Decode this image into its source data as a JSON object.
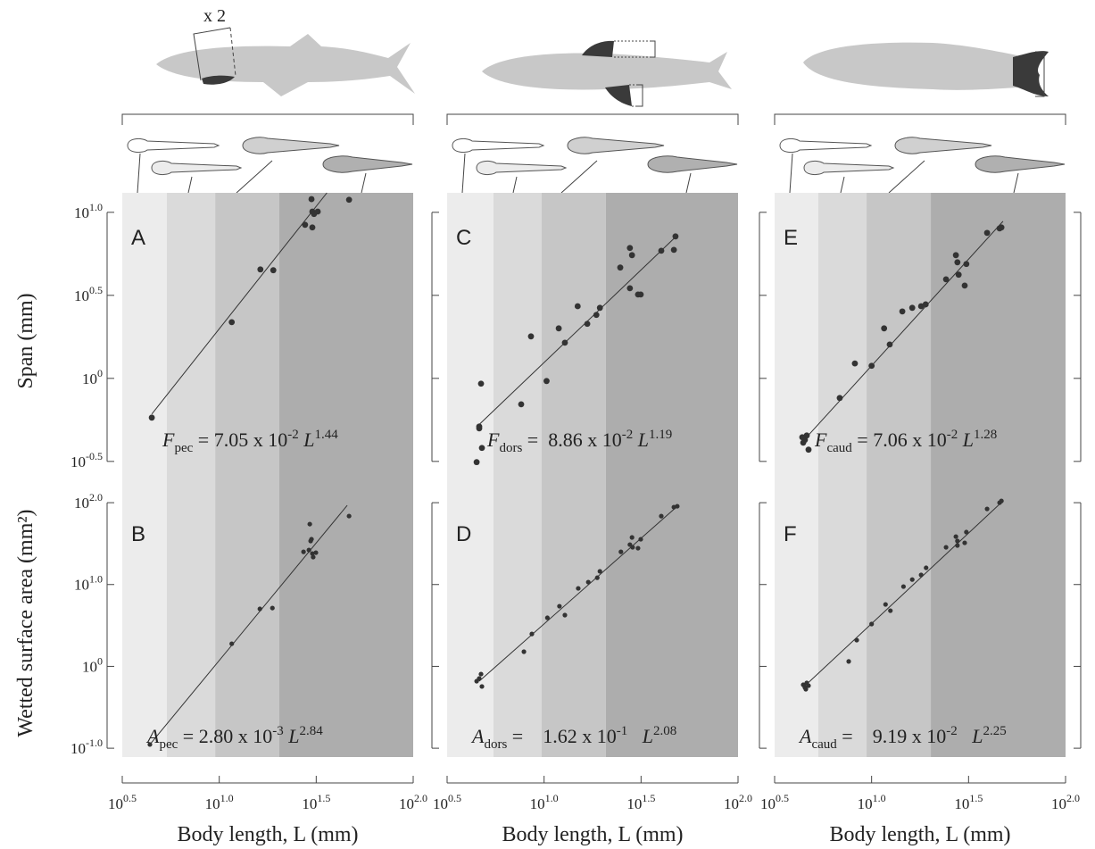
{
  "chart_data": [
    {
      "type": "scatter",
      "panel_label": "A",
      "ylabel": "Span (mm)",
      "annotation": "x 2",
      "xlim": [
        3.162,
        100
      ],
      "ylim": [
        0.215,
        13.1
      ],
      "log_x": true,
      "log_y": true,
      "yticks": [
        {
          "value": 10,
          "label": "10",
          "exp": "1.0"
        },
        {
          "value": 3.162,
          "label": "10",
          "exp": "0.5"
        },
        {
          "value": 1,
          "label": "10",
          "exp": "0"
        },
        {
          "value": 0.3162,
          "label": "10",
          "exp": "-0.5"
        }
      ],
      "shaded_regions": [
        5.37,
        9.53,
        20.4
      ],
      "shade_colors": [
        "#ececec",
        "#dadada",
        "#c6c6c6",
        "#adadad"
      ],
      "color": "#333333",
      "x": [
        4.49,
        11.6,
        16.3,
        19.0,
        27.7,
        29.9,
        30.2,
        30.2,
        30.8,
        32.2,
        46.7
      ],
      "values": [
        0.58,
        2.18,
        4.53,
        4.48,
        8.41,
        12.0,
        10.1,
        8.11,
        9.76,
        10.1,
        11.9
      ],
      "fit": {
        "x": [
          4.49,
          35.9
        ],
        "y": [
          0.61,
          13.1
        ]
      },
      "equation": {
        "symbol": "F",
        "subscript": "pec",
        "text": " = 7.05 x 10",
        "power": "-2",
        "variable": " L",
        "exponent": "1.44"
      }
    },
    {
      "type": "scatter",
      "panel_label": "B",
      "ylabel": "Wetted surface area (mm²)",
      "xlabel": "Body length, L (mm)",
      "xlim": [
        3.162,
        100
      ],
      "ylim": [
        0.078,
        146
      ],
      "log_x": true,
      "log_y": true,
      "xticks": [
        {
          "value": 3.162,
          "label": "10",
          "exp": "0.5"
        },
        {
          "value": 10,
          "label": "10",
          "exp": "1.0"
        },
        {
          "value": 31.62,
          "label": "10",
          "exp": "1.5"
        },
        {
          "value": 100,
          "label": "10",
          "exp": "2.0"
        }
      ],
      "yticks": [
        {
          "value": 100,
          "label": "10",
          "exp": "2.0"
        },
        {
          "value": 10,
          "label": "10",
          "exp": "1.0"
        },
        {
          "value": 1,
          "label": "10",
          "exp": "0"
        },
        {
          "value": 0.1,
          "label": "10",
          "exp": "-1.0"
        }
      ],
      "shaded_regions": [
        5.37,
        9.53,
        20.4
      ],
      "shade_colors": [
        "#ececec",
        "#dadada",
        "#c6c6c6",
        "#adadad"
      ],
      "color": "#333333",
      "x": [
        4.39,
        11.6,
        16.2,
        18.8,
        27.2,
        29.3,
        29.6,
        29.9,
        30.2,
        30.5,
        31.5,
        29.0,
        46.7
      ],
      "values": [
        0.111,
        1.89,
        5.04,
        5.16,
        25.1,
        54.7,
        34.0,
        35.8,
        23.9,
        21.6,
        24.5,
        26.4,
        68.6
      ],
      "fit": {
        "x": [
          4.39,
          45.7
        ],
        "y": [
          0.111,
          92.7
        ]
      },
      "equation": {
        "symbol": "A",
        "subscript": "pec",
        "text": " = 2.80 x 10",
        "power": "-3",
        "variable": " L",
        "exponent": "2.84"
      }
    },
    {
      "type": "scatter",
      "panel_label": "C",
      "xlim": [
        3.162,
        100
      ],
      "ylim": [
        0.215,
        13.1
      ],
      "log_x": true,
      "log_y": true,
      "yticks": [
        10,
        3.162,
        1,
        0.3162
      ],
      "shaded_regions": [
        5.48,
        9.72,
        20.8
      ],
      "shade_colors": [
        "#ececec",
        "#dadada",
        "#c6c6c6",
        "#adadad"
      ],
      "color": "#333333",
      "x": [
        4.63,
        4.63,
        4.73,
        4.78,
        4.49,
        7.62,
        8.56,
        10.3,
        11.9,
        12.8,
        14.9,
        16.7,
        18.6,
        19.4,
        24.7,
        27.7,
        28.4,
        27.7,
        30.5,
        31.5,
        40.2,
        46.7,
        47.6
      ],
      "values": [
        0.513,
        0.5,
        0.929,
        0.381,
        0.313,
        0.698,
        1.79,
        0.964,
        2.0,
        1.64,
        2.72,
        2.13,
        2.41,
        2.66,
        4.65,
        6.1,
        5.52,
        3.49,
        3.2,
        3.2,
        5.87,
        5.94,
        7.16
      ],
      "fit": {
        "x": [
          4.49,
          47.6
        ],
        "y": [
          0.51,
          7.1
        ]
      },
      "equation": {
        "symbol": "F",
        "subscript": "dors",
        "text": " =  8.86 x 10",
        "power": "-2",
        "variable": " L",
        "exponent": "1.19"
      }
    },
    {
      "type": "scatter",
      "panel_label": "D",
      "xlabel": "Body length, L (mm)",
      "xlim": [
        3.162,
        100
      ],
      "ylim": [
        0.078,
        146
      ],
      "log_x": true,
      "log_y": true,
      "xticks": [
        {
          "value": 3.162,
          "label": "10",
          "exp": "0.5"
        },
        {
          "value": 10,
          "label": "10",
          "exp": "1.0"
        },
        {
          "value": 31.62,
          "label": "10",
          "exp": "1.5"
        },
        {
          "value": 100,
          "label": "10",
          "exp": "2.0"
        }
      ],
      "yticks": [
        100,
        10,
        1,
        0.1
      ],
      "shaded_regions": [
        5.48,
        9.72,
        20.8
      ],
      "shade_colors": [
        "#ececec",
        "#dadada",
        "#c6c6c6",
        "#adadad"
      ],
      "color": "#333333",
      "x": [
        4.63,
        4.73,
        4.78,
        4.49,
        7.87,
        8.65,
        10.4,
        12.0,
        12.8,
        15.0,
        16.9,
        18.8,
        19.4,
        24.9,
        27.7,
        28.4,
        28.6,
        30.5,
        31.5,
        40.2,
        46.7,
        48.6
      ],
      "values": [
        0.711,
        0.805,
        0.568,
        0.659,
        1.51,
        2.49,
        3.92,
        5.43,
        4.23,
        8.97,
        10.7,
        12.1,
        14.5,
        25.1,
        30.7,
        37.6,
        28.5,
        27.8,
        35.7,
        68.5,
        88.2,
        90.4
      ],
      "fit": {
        "x": [
          4.63,
          49.2
        ],
        "y": [
          0.659,
          92.7
        ]
      },
      "equation": {
        "symbol": "A",
        "subscript": "dors",
        "text": " =    1.62 x 10",
        "power": "-1",
        "variable": "   L",
        "exponent": "2.08"
      }
    },
    {
      "type": "scatter",
      "panel_label": "E",
      "xlim": [
        3.162,
        100
      ],
      "ylim": [
        0.215,
        13.1
      ],
      "log_x": true,
      "log_y": true,
      "yticks": [
        10,
        3.162,
        1,
        0.3162
      ],
      "shaded_regions": [
        5.31,
        9.42,
        20.2
      ],
      "shade_colors": [
        "#ececec",
        "#dadada",
        "#c6c6c6",
        "#adadad"
      ],
      "color": "#333333",
      "x": [
        4.44,
        4.53,
        4.63,
        4.73,
        4.39,
        6.85,
        8.2,
        10.0,
        11.6,
        12.4,
        14.4,
        16.2,
        18.0,
        19.0,
        24.2,
        27.2,
        27.7,
        28.1,
        30.2,
        30.8,
        39.4,
        45.7,
        46.7
      ],
      "values": [
        0.41,
        0.426,
        0.453,
        0.372,
        0.442,
        0.762,
        1.23,
        1.19,
        2.0,
        1.6,
        2.53,
        2.66,
        2.72,
        2.79,
        3.95,
        5.52,
        5.0,
        4.21,
        3.62,
        4.88,
        7.52,
        8.0,
        8.11
      ],
      "fit": {
        "x": [
          4.39,
          47.6
        ],
        "y": [
          0.414,
          8.83
        ]
      },
      "equation": {
        "symbol": "F",
        "subscript": "caud",
        "text": " = 7.06 x 10",
        "power": "-2",
        "variable": " L",
        "exponent": "1.28"
      }
    },
    {
      "type": "scatter",
      "panel_label": "F",
      "xlabel": "Body length, L (mm)",
      "xlim": [
        3.162,
        100
      ],
      "ylim": [
        0.078,
        146
      ],
      "log_x": true,
      "log_y": true,
      "xticks": [
        {
          "value": 3.162,
          "label": "10",
          "exp": "0.5"
        },
        {
          "value": 10,
          "label": "10",
          "exp": "1.0"
        },
        {
          "value": 31.62,
          "label": "10",
          "exp": "1.5"
        },
        {
          "value": 100,
          "label": "10",
          "exp": "2.0"
        }
      ],
      "yticks": [
        100,
        10,
        1,
        0.1
      ],
      "shaded_regions": [
        5.31,
        9.42,
        20.2
      ],
      "shade_colors": [
        "#ececec",
        "#dadada",
        "#c6c6c6",
        "#adadad"
      ],
      "color": "#333333",
      "x": [
        4.44,
        4.53,
        4.63,
        4.58,
        4.73,
        7.62,
        8.38,
        10.0,
        11.8,
        12.5,
        14.6,
        16.2,
        18.0,
        19.1,
        24.2,
        27.2,
        27.7,
        27.7,
        30.2,
        30.8,
        39.4,
        45.7,
        46.7
      ],
      "values": [
        0.596,
        0.553,
        0.627,
        0.526,
        0.581,
        1.15,
        2.09,
        3.29,
        5.71,
        4.79,
        9.44,
        11.5,
        13.1,
        16.0,
        28.5,
        38.5,
        34.0,
        30.0,
        32.3,
        43.7,
        83.9,
        100,
        105
      ],
      "fit": {
        "x": [
          4.44,
          47.6
        ],
        "y": [
          0.553,
          105
        ]
      },
      "equation": {
        "symbol": "A",
        "subscript": "caud",
        "text": " =    9.19 x 10",
        "power": "-2",
        "variable": "   L",
        "exponent": "2.25"
      }
    }
  ]
}
